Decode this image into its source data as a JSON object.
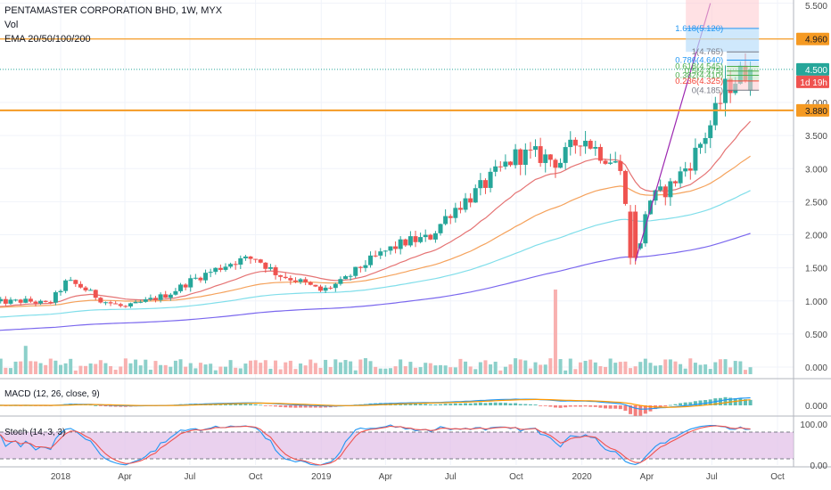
{
  "header": {
    "symbol_line": "PENTAMASTER CORPORATION BHD, 1W, MYX",
    "vol_label": "Vol",
    "ema_label": "EMA 20/50/100/200"
  },
  "colors": {
    "up": "#26a69a",
    "down": "#ef5350",
    "ema20": "#e57373",
    "ema50": "#f5a25c",
    "ema100": "#80deea",
    "ema200": "#7b68ee",
    "trend": "#9c27b0",
    "level": "#f59a23",
    "macd": "#2196f3",
    "signal": "#ff9800",
    "stoch_k": "#2196f3",
    "stoch_d": "#ef5350",
    "stoch_band": "#e1bee7"
  },
  "chart_data": [
    {
      "type": "candlestick",
      "title": "PENTAMASTER CORPORATION BHD, 1W, MYX",
      "ylim": [
        0,
        5.5
      ],
      "y_ticks": [
        "5.500",
        "4.000",
        "3.500",
        "3.000",
        "2.500",
        "2.000",
        "1.500",
        "1.000",
        "0.500",
        "0.000"
      ],
      "x_ticks": [
        "2018",
        "Apr",
        "Jul",
        "Oct",
        "2019",
        "Apr",
        "Jul",
        "Oct",
        "2020",
        "Apr",
        "Jul",
        "Oct"
      ],
      "x_tick_dates": [
        "2018-01-01",
        "2018-04-01",
        "2018-07-01",
        "2018-10-01",
        "2019-01-01",
        "2019-04-01",
        "2019-07-01",
        "2019-10-01",
        "2020-01-01",
        "2020-04-01",
        "2020-07-01",
        "2020-10-01"
      ],
      "close_path": {
        "dates": [
          "2017-10-01",
          "2017-11-15",
          "2017-12-15",
          "2018-01-10",
          "2018-02-01",
          "2018-03-01",
          "2018-04-01",
          "2018-05-01",
          "2018-06-01",
          "2018-07-01",
          "2018-08-01",
          "2018-09-01",
          "2018-10-01",
          "2018-11-01",
          "2018-12-01",
          "2019-01-01",
          "2019-02-01",
          "2019-03-01",
          "2019-04-01",
          "2019-05-01",
          "2019-06-01",
          "2019-07-01",
          "2019-08-01",
          "2019-09-01",
          "2019-10-01",
          "2019-11-01",
          "2019-12-01",
          "2020-01-01",
          "2020-01-20",
          "2020-02-01",
          "2020-02-20",
          "2020-03-10",
          "2020-03-20",
          "2020-04-01",
          "2020-05-01",
          "2020-06-01",
          "2020-07-01",
          "2020-07-20",
          "2020-08-01",
          "2020-08-20"
        ],
        "close": [
          0.98,
          1.0,
          0.95,
          1.3,
          1.2,
          1.0,
          0.9,
          1.0,
          1.1,
          1.3,
          1.45,
          1.6,
          1.65,
          1.4,
          1.3,
          1.15,
          1.3,
          1.55,
          1.75,
          1.9,
          1.95,
          2.35,
          2.6,
          2.9,
          3.2,
          3.2,
          3.1,
          3.5,
          3.3,
          3.2,
          3.1,
          2.2,
          1.6,
          2.5,
          2.7,
          3.1,
          3.7,
          4.2,
          4.35,
          4.5
        ]
      },
      "ema": {
        "ema20_last": 3.65,
        "ema50_last": 3.15,
        "ema100_last": 2.6,
        "ema200_last": 1.92
      },
      "horizontal_levels": [
        {
          "label": "4.960",
          "value": 4.96
        },
        {
          "label": "3.880",
          "value": 3.88
        }
      ],
      "price_labels": [
        {
          "label": "4.500",
          "value": 4.5
        },
        {
          "label": "1d 19h",
          "value": 4.33
        }
      ],
      "fibonacci": {
        "levels": [
          {
            "label": "1.618(5.120)",
            "value": 5.12
          },
          {
            "label": "1(4.765)",
            "value": 4.765
          },
          {
            "label": "0.786(4.640)",
            "value": 4.64
          },
          {
            "label": "0.618(4.545)",
            "value": 4.545
          },
          {
            "label": "0.5(4.475)",
            "value": 4.475
          },
          {
            "label": "0.382(4.410)",
            "value": 4.41
          },
          {
            "label": "0.236(4.325)",
            "value": 4.325
          },
          {
            "label": "0(4.185)",
            "value": 4.185
          }
        ]
      },
      "volume_spike_date": "2019-11-25"
    },
    {
      "type": "bar",
      "title": "MACD (12, 26, close, 9)",
      "y_ticks": [
        "0.000"
      ]
    },
    {
      "type": "line",
      "title": "Stoch (14, 3, 3)",
      "y_ticks": [
        "100.00",
        "0.00"
      ],
      "bands": [
        80,
        20
      ]
    }
  ]
}
